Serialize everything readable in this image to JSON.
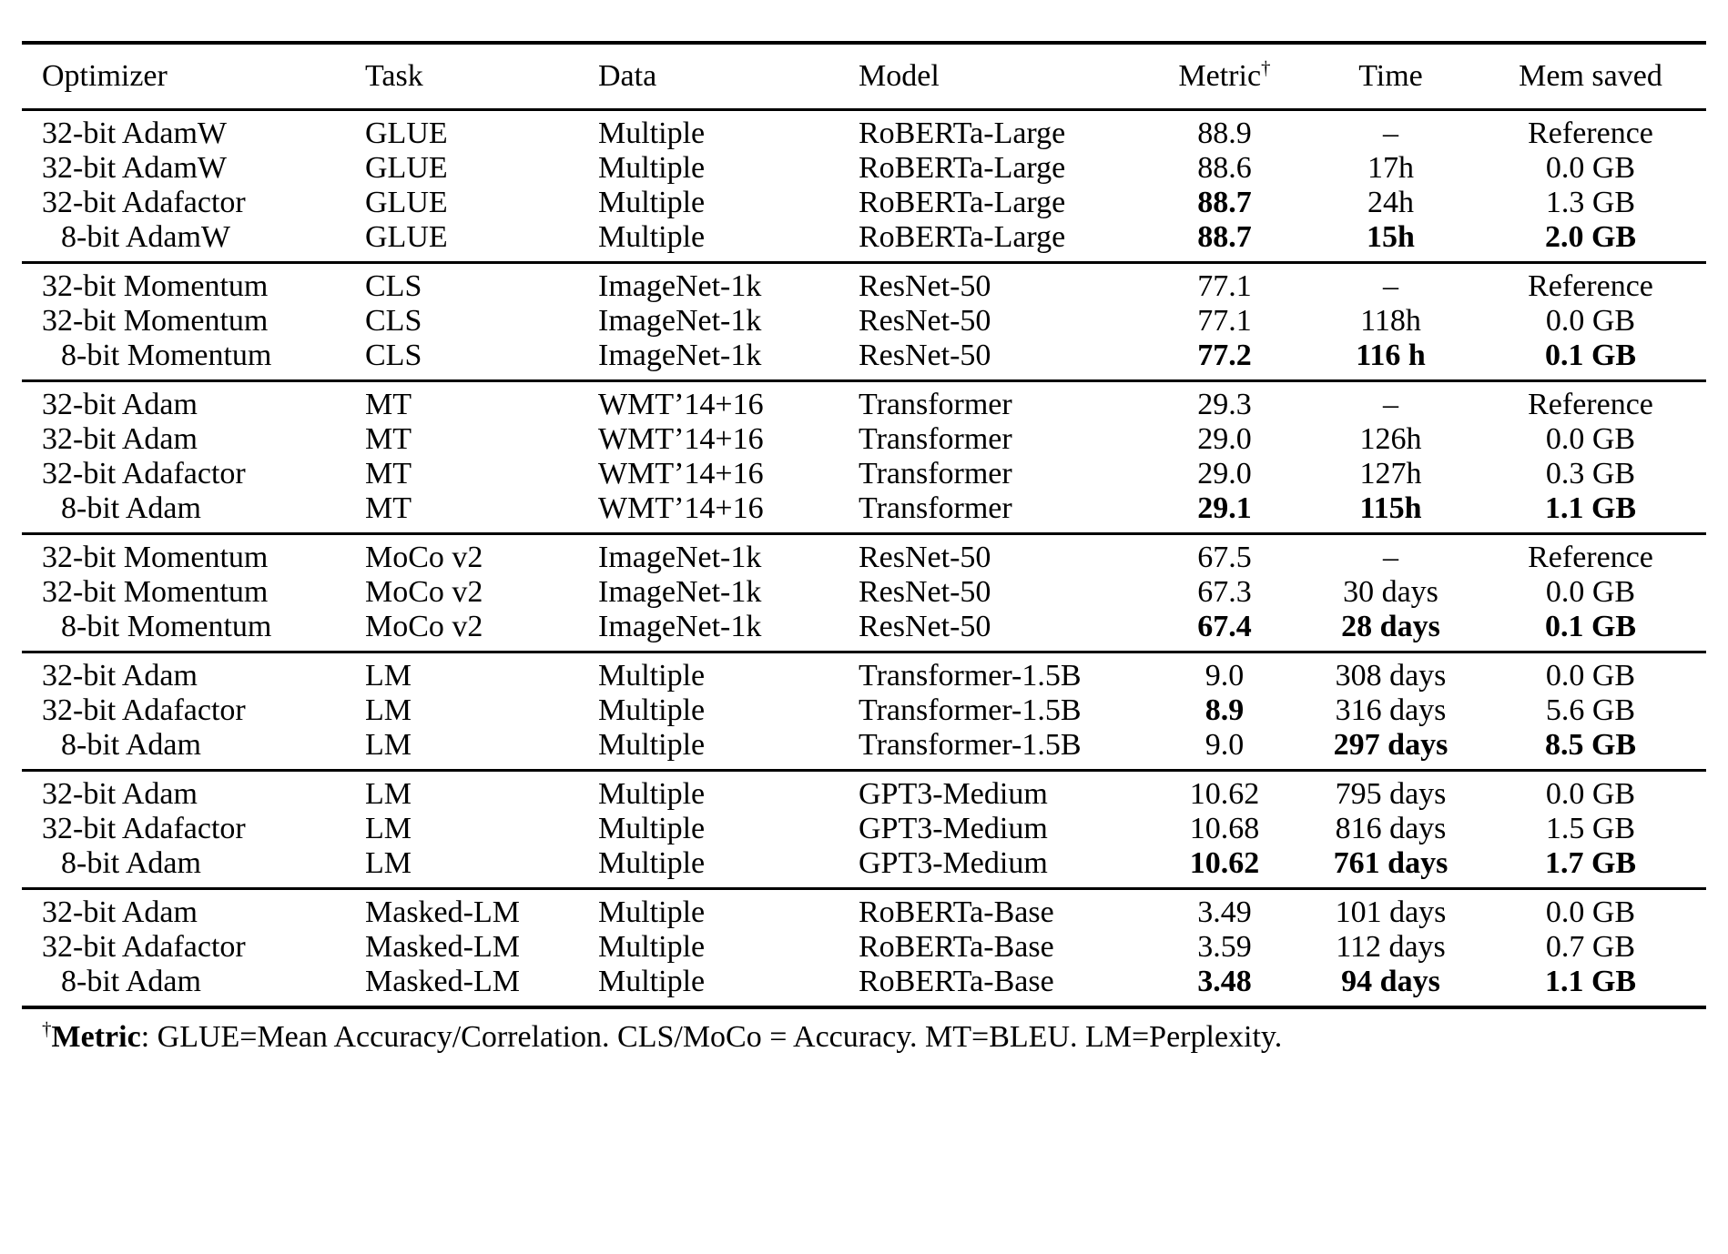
{
  "table": {
    "columns": [
      {
        "key": "optimizer",
        "label": "Optimizer",
        "align": "left"
      },
      {
        "key": "task",
        "label": "Task",
        "align": "left"
      },
      {
        "key": "data",
        "label": "Data",
        "align": "left"
      },
      {
        "key": "model",
        "label": "Model",
        "align": "left"
      },
      {
        "key": "metric",
        "label": "Metric",
        "sup": "†",
        "align": "center"
      },
      {
        "key": "time",
        "label": "Time",
        "align": "center"
      },
      {
        "key": "mem_saved",
        "label": "Mem saved",
        "align": "center"
      }
    ],
    "sections": [
      {
        "rows": [
          {
            "cells": [
              "32-bit AdamW",
              "GLUE",
              "Multiple",
              "RoBERTa-Large",
              "88.9",
              "–",
              "Reference"
            ],
            "bold": []
          },
          {
            "cells": [
              "32-bit AdamW",
              "GLUE",
              "Multiple",
              "RoBERTa-Large",
              "88.6",
              "17h",
              "0.0 GB"
            ],
            "bold": []
          },
          {
            "cells": [
              "32-bit Adafactor",
              "GLUE",
              "Multiple",
              "RoBERTa-Large",
              "88.7",
              "24h",
              "1.3 GB"
            ],
            "bold": [
              4
            ]
          },
          {
            "cells": [
              "8-bit AdamW",
              "GLUE",
              "Multiple",
              "RoBERTa-Large",
              "88.7",
              "15h",
              "2.0 GB"
            ],
            "bold": [
              4,
              5,
              6
            ]
          }
        ]
      },
      {
        "rows": [
          {
            "cells": [
              "32-bit Momentum",
              "CLS",
              "ImageNet-1k",
              "ResNet-50",
              "77.1",
              "–",
              "Reference"
            ],
            "bold": []
          },
          {
            "cells": [
              "32-bit Momentum",
              "CLS",
              "ImageNet-1k",
              "ResNet-50",
              "77.1",
              "118h",
              "0.0 GB"
            ],
            "bold": []
          },
          {
            "cells": [
              "8-bit Momentum",
              "CLS",
              "ImageNet-1k",
              "ResNet-50",
              "77.2",
              "116 h",
              "0.1 GB"
            ],
            "bold": [
              4,
              5,
              6
            ]
          }
        ]
      },
      {
        "rows": [
          {
            "cells": [
              "32-bit Adam",
              "MT",
              "WMT’14+16",
              "Transformer",
              "29.3",
              "–",
              "Reference"
            ],
            "bold": []
          },
          {
            "cells": [
              "32-bit Adam",
              "MT",
              "WMT’14+16",
              "Transformer",
              "29.0",
              "126h",
              "0.0 GB"
            ],
            "bold": []
          },
          {
            "cells": [
              "32-bit Adafactor",
              "MT",
              "WMT’14+16",
              "Transformer",
              "29.0",
              "127h",
              "0.3 GB"
            ],
            "bold": []
          },
          {
            "cells": [
              "8-bit Adam",
              "MT",
              "WMT’14+16",
              "Transformer",
              "29.1",
              "115h",
              "1.1 GB"
            ],
            "bold": [
              4,
              5,
              6
            ]
          }
        ]
      },
      {
        "rows": [
          {
            "cells": [
              "32-bit Momentum",
              "MoCo v2",
              "ImageNet-1k",
              "ResNet-50",
              "67.5",
              "–",
              "Reference"
            ],
            "bold": []
          },
          {
            "cells": [
              "32-bit Momentum",
              "MoCo v2",
              "ImageNet-1k",
              "ResNet-50",
              "67.3",
              "30 days",
              "0.0 GB"
            ],
            "bold": []
          },
          {
            "cells": [
              "8-bit Momentum",
              "MoCo v2",
              "ImageNet-1k",
              "ResNet-50",
              "67.4",
              "28 days",
              "0.1 GB"
            ],
            "bold": [
              4,
              5,
              6
            ]
          }
        ]
      },
      {
        "rows": [
          {
            "cells": [
              "32-bit Adam",
              "LM",
              "Multiple",
              "Transformer-1.5B",
              "9.0",
              "308 days",
              "0.0 GB"
            ],
            "bold": []
          },
          {
            "cells": [
              "32-bit Adafactor",
              "LM",
              "Multiple",
              "Transformer-1.5B",
              "8.9",
              "316 days",
              "5.6 GB"
            ],
            "bold": [
              4
            ]
          },
          {
            "cells": [
              "8-bit Adam",
              "LM",
              "Multiple",
              "Transformer-1.5B",
              "9.0",
              "297 days",
              "8.5 GB"
            ],
            "bold": [
              5,
              6
            ]
          }
        ]
      },
      {
        "rows": [
          {
            "cells": [
              "32-bit Adam",
              "LM",
              "Multiple",
              "GPT3-Medium",
              "10.62",
              "795 days",
              "0.0 GB"
            ],
            "bold": []
          },
          {
            "cells": [
              "32-bit Adafactor",
              "LM",
              "Multiple",
              "GPT3-Medium",
              "10.68",
              "816 days",
              "1.5 GB"
            ],
            "bold": []
          },
          {
            "cells": [
              "8-bit Adam",
              "LM",
              "Multiple",
              "GPT3-Medium",
              "10.62",
              "761 days",
              "1.7 GB"
            ],
            "bold": [
              4,
              5,
              6
            ]
          }
        ]
      },
      {
        "rows": [
          {
            "cells": [
              "32-bit Adam",
              "Masked-LM",
              "Multiple",
              "RoBERTa-Base",
              "3.49",
              "101 days",
              "0.0 GB"
            ],
            "bold": []
          },
          {
            "cells": [
              "32-bit Adafactor",
              "Masked-LM",
              "Multiple",
              "RoBERTa-Base",
              "3.59",
              "112 days",
              "0.7 GB"
            ],
            "bold": []
          },
          {
            "cells": [
              "8-bit Adam",
              "Masked-LM",
              "Multiple",
              "RoBERTa-Base",
              "3.48",
              "94 days",
              "1.1 GB"
            ],
            "bold": [
              4,
              5,
              6
            ]
          }
        ]
      }
    ]
  },
  "footnote": {
    "dagger": "†",
    "label": "Metric",
    "text": ": GLUE=Mean Accuracy/Correlation. CLS/MoCo = Accuracy. MT=BLEU. LM=Perplexity."
  }
}
